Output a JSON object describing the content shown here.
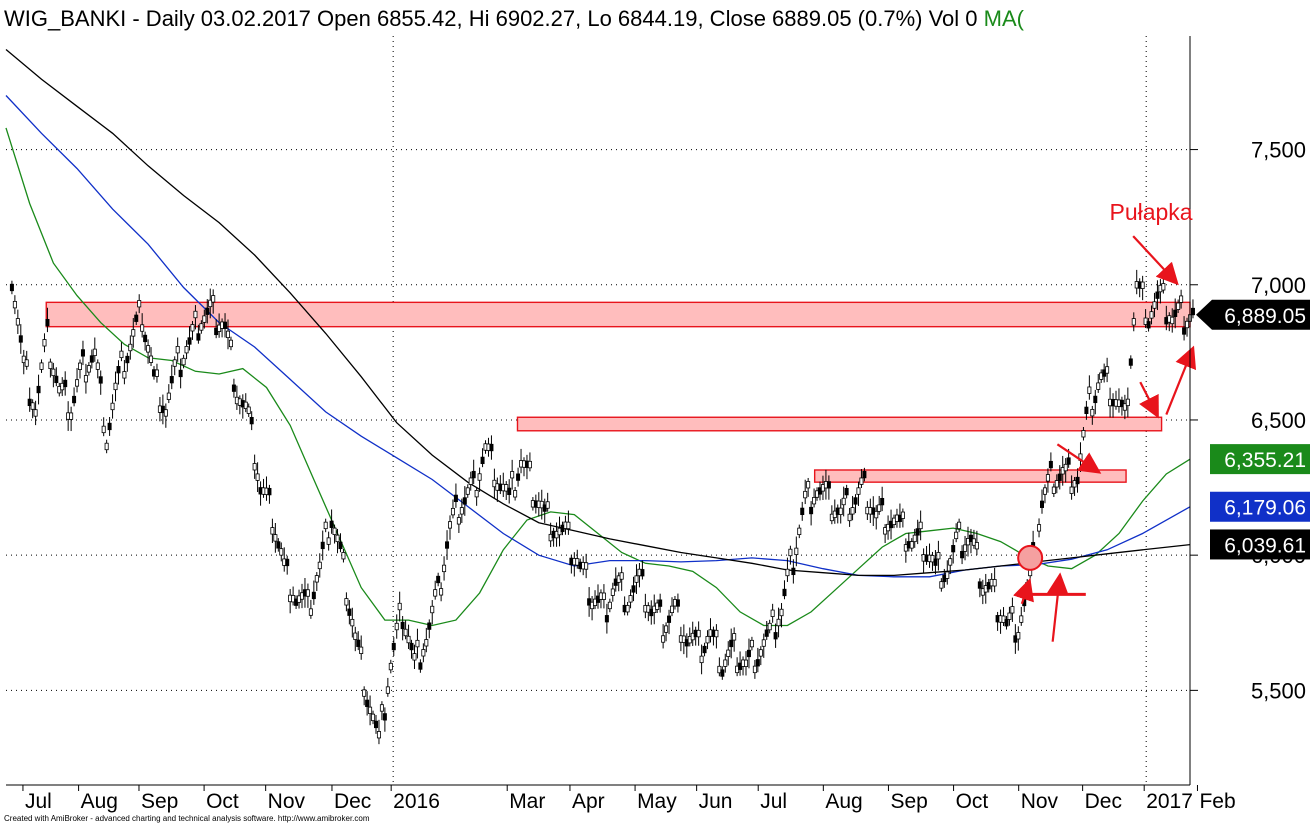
{
  "header": {
    "symbol": "WIG_BANKI",
    "info": " - Daily 03.02.2017 Open 6855.42, Hi 6902.27, Lo 6844.19, Close 6889.05 (0.7%) Vol 0 ",
    "ma_label": "MA("
  },
  "footer": "Created with AmiBroker - advanced charting and technical analysis software. http://www.amibroker.com",
  "annotation": "Pułapka",
  "colors": {
    "grid": "#000000",
    "zone_fill": "#ffbdbd",
    "zone_stroke": "#e8141c",
    "arrow": "#e8141c",
    "ma_short": "#1a8a1a",
    "ma_mid": "#1030c8",
    "ma_long": "#000000",
    "last_price_tag": "#000000",
    "ma_short_tag": "#1a8a1a",
    "ma_mid_tag": "#1030c8",
    "ma_long_tag": "#000000"
  },
  "chart_data": {
    "type": "line",
    "title": "WIG_BANKI - Daily",
    "ylim": [
      5150,
      7920
    ],
    "y_ticks": [
      5500,
      6000,
      6500,
      7000,
      7500
    ],
    "y_tick_labels": [
      "5,500",
      "6,000",
      "6,500",
      "7,000",
      "7,500"
    ],
    "x_range": [
      0,
      100
    ],
    "x_months": [
      {
        "label": "Jul",
        "t": 1.6
      },
      {
        "label": "Aug",
        "t": 6.3
      },
      {
        "label": "Sep",
        "t": 11.4
      },
      {
        "label": "Oct",
        "t": 16.9
      },
      {
        "label": "Nov",
        "t": 22.1
      },
      {
        "label": "Dec",
        "t": 27.7
      },
      {
        "label": "2016",
        "t": 32.7
      },
      {
        "label": "Mar",
        "t": 42.5
      },
      {
        "label": "Apr",
        "t": 47.8
      },
      {
        "label": "May",
        "t": 53.3
      },
      {
        "label": "Jun",
        "t": 58.5
      },
      {
        "label": "Jul",
        "t": 63.7
      },
      {
        "label": "Aug",
        "t": 69.2
      },
      {
        "label": "Sep",
        "t": 74.7
      },
      {
        "label": "Oct",
        "t": 80.2
      },
      {
        "label": "Nov",
        "t": 85.7
      },
      {
        "label": "Dec",
        "t": 91.1
      },
      {
        "label": "2017",
        "t": 96.3
      },
      {
        "label": "Feb",
        "t": 100.8
      }
    ],
    "price": {
      "x": [
        0.5,
        1.5,
        2.5,
        3.5,
        4.5,
        5.5,
        6.5,
        7.5,
        8.5,
        9.5,
        10.5,
        11.5,
        12.5,
        13.5,
        14.5,
        15.5,
        16.5,
        17.5,
        18.5,
        19.5,
        20.5,
        21.5,
        22.5,
        23.5,
        24.5,
        25.5,
        26.5,
        27.5,
        28.5,
        29.5,
        30.5,
        31.5,
        32.5,
        33.5,
        34.5,
        35.5,
        36.5,
        37.5,
        38.5,
        39.5,
        40.5,
        41.5,
        42.5,
        43.5,
        44.5,
        45.5,
        46.5,
        47.5,
        48.5,
        49.5,
        50.5,
        51.5,
        52.5,
        53.5,
        54.5,
        55.5,
        56.5,
        57.5,
        58.5,
        59.5,
        60.5,
        61.5,
        62.5,
        63.5,
        64.5,
        65.5,
        66.5,
        67.5,
        68.5,
        69.5,
        70.5,
        71.5,
        72.5,
        73.5,
        74.5,
        75.5,
        76.5,
        77.5,
        78.5,
        79.5,
        80.5,
        81.5,
        82.5,
        83.5,
        84.5,
        85.5,
        86.5,
        87.5,
        88.5,
        89.5,
        90.5,
        91.5,
        92.5,
        93.5,
        94.5,
        95.5,
        96.5,
        97.5,
        98.5,
        99.5
      ],
      "y": [
        7050,
        6700,
        6550,
        6800,
        6600,
        6550,
        6700,
        6750,
        6450,
        6650,
        6780,
        6900,
        6650,
        6550,
        6700,
        6780,
        6880,
        6900,
        6850,
        6620,
        6500,
        6250,
        6150,
        5950,
        5850,
        5800,
        5950,
        6150,
        5950,
        5700,
        5500,
        5300,
        5600,
        5800,
        5600,
        5700,
        5850,
        6100,
        6200,
        6250,
        6400,
        6300,
        6200,
        6350,
        6250,
        6150,
        6100,
        6050,
        5950,
        5850,
        5800,
        5900,
        5850,
        5900,
        5800,
        5750,
        5800,
        5700,
        5650,
        5700,
        5600,
        5650,
        5600,
        5650,
        5700,
        5800,
        6000,
        6200,
        6250,
        6200,
        6150,
        6200,
        6250,
        6150,
        6150,
        6100,
        6050,
        6050,
        5950,
        5950,
        6050,
        6050,
        5900,
        5850,
        5750,
        5750,
        5900,
        6200,
        6300,
        6300,
        6300,
        6550,
        6650,
        6600,
        6500,
        7000,
        6900,
        6950,
        6880,
        6889
      ],
      "last": 6889.05
    },
    "series": [
      {
        "name": "MA short",
        "color_key": "ma_short",
        "x": [
          0,
          2,
          4,
          6,
          8,
          10,
          12,
          14,
          16,
          18,
          20,
          22,
          24,
          26,
          28,
          30,
          32,
          34,
          36,
          38,
          40,
          42,
          44,
          46,
          48,
          50,
          52,
          54,
          56,
          58,
          60,
          62,
          64,
          66,
          68,
          70,
          72,
          74,
          76,
          78,
          80,
          82,
          84,
          86,
          88,
          90,
          92,
          94,
          96,
          98,
          100
        ],
        "y": [
          7580,
          7300,
          7080,
          6960,
          6860,
          6780,
          6730,
          6720,
          6680,
          6670,
          6690,
          6620,
          6480,
          6280,
          6080,
          5880,
          5760,
          5760,
          5740,
          5760,
          5860,
          6020,
          6130,
          6160,
          6150,
          6080,
          6010,
          5970,
          5960,
          5940,
          5880,
          5790,
          5740,
          5740,
          5790,
          5870,
          5950,
          6030,
          6080,
          6090,
          6100,
          6080,
          6050,
          6000,
          5960,
          5950,
          6000,
          6080,
          6200,
          6300,
          6355
        ],
        "last": 6355.21
      },
      {
        "name": "MA mid",
        "color_key": "ma_mid",
        "x": [
          0,
          3,
          6,
          9,
          12,
          15,
          18,
          21,
          24,
          27,
          30,
          33,
          36,
          39,
          42,
          45,
          48,
          51,
          54,
          57,
          60,
          63,
          66,
          69,
          72,
          75,
          78,
          81,
          84,
          87,
          90,
          93,
          96,
          100
        ],
        "y": [
          7700,
          7560,
          7430,
          7280,
          7150,
          6990,
          6860,
          6770,
          6650,
          6530,
          6440,
          6360,
          6280,
          6180,
          6080,
          6000,
          5960,
          5980,
          5980,
          5975,
          5980,
          5990,
          5980,
          5950,
          5925,
          5920,
          5920,
          5945,
          5960,
          5965,
          5985,
          6020,
          6080,
          6179
        ],
        "last": 6179.06
      },
      {
        "name": "MA long",
        "color_key": "ma_long",
        "x": [
          0,
          3,
          6,
          9,
          12,
          15,
          18,
          21,
          24,
          27,
          30,
          33,
          36,
          39,
          42,
          45,
          48,
          51,
          54,
          57,
          60,
          63,
          66,
          69,
          72,
          75,
          78,
          81,
          84,
          87,
          90,
          93,
          96,
          100
        ],
        "y": [
          7870,
          7760,
          7660,
          7560,
          7440,
          7330,
          7230,
          7110,
          6970,
          6820,
          6660,
          6490,
          6370,
          6270,
          6190,
          6120,
          6090,
          6060,
          6035,
          6010,
          5990,
          5970,
          5945,
          5935,
          5925,
          5925,
          5935,
          5945,
          5960,
          5975,
          5990,
          6005,
          6020,
          6039
        ],
        "last": 6039.61
      }
    ],
    "zones": [
      {
        "x0": 3.4,
        "x1": 100,
        "y0": 6845,
        "y1": 6935
      },
      {
        "x0": 43.2,
        "x1": 97.6,
        "y0": 6460,
        "y1": 6510
      },
      {
        "x0": 68.3,
        "x1": 94.6,
        "y0": 6270,
        "y1": 6315
      }
    ],
    "price_tags": [
      {
        "label": "6,889.05",
        "value": 6889.05,
        "kind": "arrow",
        "color_key": "last_price_tag"
      },
      {
        "label": "6,355.21",
        "value": 6355.21,
        "kind": "box",
        "color_key": "ma_short_tag"
      },
      {
        "label": "6,179.06",
        "value": 6179.06,
        "kind": "box",
        "color_key": "ma_mid_tag"
      },
      {
        "label": "6,039.61",
        "value": 6039.61,
        "kind": "box",
        "color_key": "ma_long_tag"
      }
    ],
    "arrows": [
      {
        "from": [
          95.2,
          7180
        ],
        "to": [
          98.8,
          7010
        ]
      },
      {
        "from": [
          88.8,
          6410
        ],
        "to": [
          92.2,
          6310
        ]
      },
      {
        "from": [
          98.0,
          6520
        ],
        "to": [
          100.2,
          6760
        ]
      },
      {
        "from": [
          95.8,
          6640
        ],
        "to": [
          97.2,
          6520
        ]
      },
      {
        "from": [
          85.8,
          5820
        ],
        "to": [
          86.4,
          5900
        ]
      },
      {
        "from": [
          88.4,
          5680
        ],
        "to": [
          89.0,
          5920
        ]
      }
    ],
    "marker_line": {
      "x0": 86.4,
      "x1": 91.2,
      "y": 5855
    },
    "circle": {
      "x": 86.5,
      "y": 5990
    },
    "annotation_pos": {
      "x": 93.2,
      "y": 7240
    }
  }
}
